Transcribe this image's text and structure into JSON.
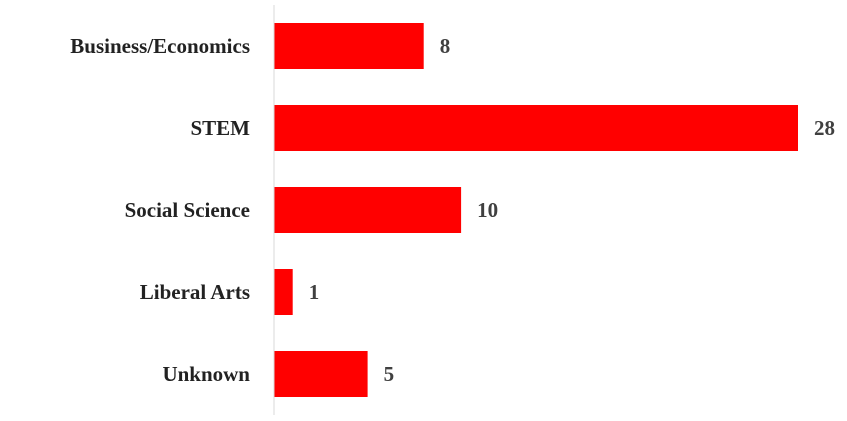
{
  "chart_data": {
    "type": "bar",
    "orientation": "horizontal",
    "categories": [
      "Business/Economics",
      "STEM",
      "Social Science",
      "Liberal Arts",
      "Unknown"
    ],
    "values": [
      8,
      28,
      10,
      1,
      5
    ],
    "title": "",
    "xlabel": "",
    "ylabel": "",
    "xlim": [
      0,
      28
    ],
    "grid": false,
    "legend": "none",
    "bar_color": "#ff0000",
    "show_data_labels": true
  }
}
